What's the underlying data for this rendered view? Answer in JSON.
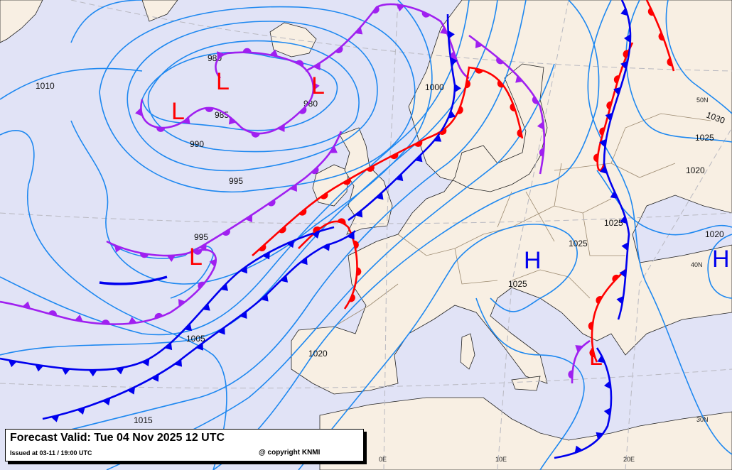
{
  "legend": {
    "title": "Forecast Valid:  Tue 04 Nov 2025 12 UTC",
    "issued": "Issued at 03-11 / 19:00 UTC",
    "copyright": "@ copyright KNMI"
  },
  "isobar_labels": [
    "1010",
    "980",
    "980",
    "985",
    "990",
    "995",
    "995",
    "1000",
    "1005",
    "1015",
    "1020",
    "1025",
    "1025",
    "1025",
    "1030",
    "1025",
    "1020",
    "1020"
  ],
  "pressure_centers": [
    {
      "type": "L",
      "color": "#ff0000"
    },
    {
      "type": "L",
      "color": "#ff0000"
    },
    {
      "type": "L",
      "color": "#ff0000"
    },
    {
      "type": "L",
      "color": "#ff0000"
    },
    {
      "type": "L",
      "color": "#ff0000"
    },
    {
      "type": "H",
      "color": "#0000ee"
    },
    {
      "type": "H",
      "color": "#0000ee"
    }
  ],
  "coord_labels": [
    "0E",
    "10E",
    "20E",
    "30N",
    "40N",
    "50N"
  ],
  "front_colors": {
    "cold": "#0000ee",
    "warm": "#ff0000",
    "occluded": "#a020f0",
    "isobar": "#1e88f0"
  },
  "colors": {
    "sea": "#e1e3f6",
    "land": "#f8efe3"
  }
}
